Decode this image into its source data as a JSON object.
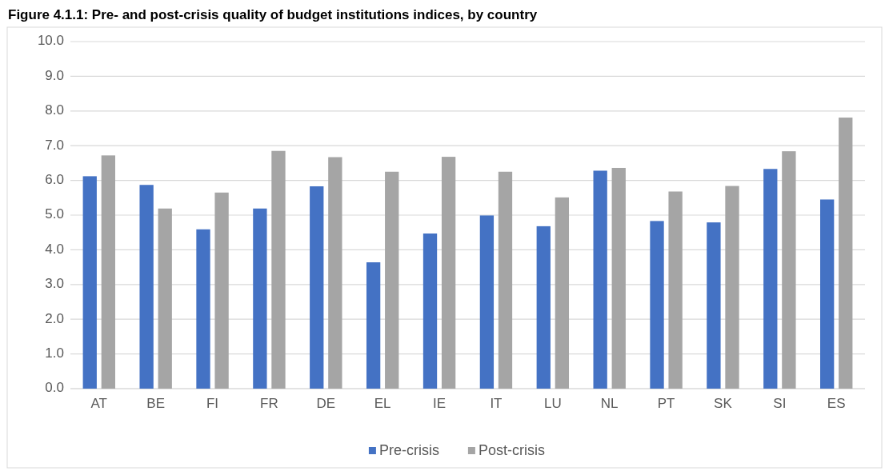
{
  "chart_data": {
    "type": "bar",
    "title": "Figure 4.1.1: Pre- and post-crisis quality of budget institutions indices, by country",
    "categories": [
      "AT",
      "BE",
      "FI",
      "FR",
      "DE",
      "EL",
      "IE",
      "IT",
      "LU",
      "NL",
      "PT",
      "SK",
      "SI",
      "ES"
    ],
    "series": [
      {
        "name": "Pre-crisis",
        "color": "#4472c4",
        "values": [
          6.12,
          5.87,
          4.59,
          5.19,
          5.83,
          3.64,
          4.47,
          4.99,
          4.68,
          6.28,
          4.83,
          4.79,
          6.33,
          5.45
        ]
      },
      {
        "name": "Post-crisis",
        "color": "#a5a5a5",
        "values": [
          6.72,
          5.19,
          5.65,
          6.85,
          6.67,
          6.25,
          6.68,
          6.25,
          5.51,
          6.36,
          5.68,
          5.84,
          6.84,
          7.81
        ]
      }
    ],
    "ylim": [
      0,
      10
    ],
    "yticks": [
      {
        "value": 0,
        "label": "0.0"
      },
      {
        "value": 1,
        "label": "1.0"
      },
      {
        "value": 2,
        "label": "2.0"
      },
      {
        "value": 3,
        "label": "3.0"
      },
      {
        "value": 4,
        "label": "4.0"
      },
      {
        "value": 5,
        "label": "5.0"
      },
      {
        "value": 6,
        "label": "6.0"
      },
      {
        "value": 7,
        "label": "7.0"
      },
      {
        "value": 8,
        "label": "8.0"
      },
      {
        "value": 9,
        "label": "9.0"
      },
      {
        "value": 10,
        "label": "10.0"
      }
    ],
    "grid": "y",
    "legend": "bottom"
  }
}
